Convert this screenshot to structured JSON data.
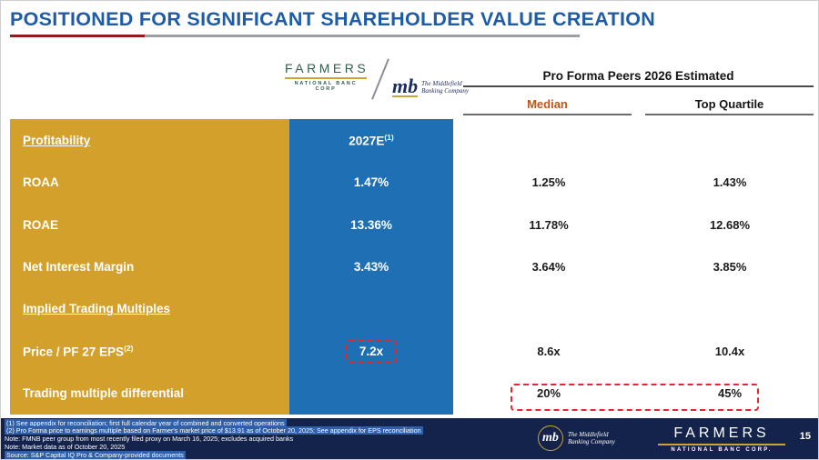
{
  "title": "POSITIONED FOR SIGNIFICANT SHAREHOLDER VALUE CREATION",
  "logos": {
    "farmers_name": "FARMERS",
    "farmers_sub": "NATIONAL BANC CORP",
    "mb_mark": "mb",
    "mb_line1": "The Middlefield",
    "mb_line2": "Banking Company"
  },
  "header": {
    "peers_title": "Pro Forma Peers 2026 Estimated",
    "col_median": "Median",
    "col_top_quartile": "Top Quartile"
  },
  "table": {
    "rows": [
      {
        "label": "Profitability",
        "company": "2027E",
        "company_sup": "(1)",
        "median": "",
        "top": ""
      },
      {
        "label": "ROAA",
        "company": "1.47%",
        "median": "1.25%",
        "top": "1.43%"
      },
      {
        "label": "ROAE",
        "company": "13.36%",
        "median": "11.78%",
        "top": "12.68%"
      },
      {
        "label": "Net Interest Margin",
        "company": "3.43%",
        "median": "3.64%",
        "top": "3.85%"
      },
      {
        "label": "Implied Trading Multiples",
        "company": "",
        "median": "",
        "top": ""
      },
      {
        "label": "Price / PF 27 EPS",
        "label_sup": "(2)",
        "company": "7.2x",
        "median": "8.6x",
        "top": "10.4x"
      },
      {
        "label": "Trading multiple differential",
        "company": "",
        "median": "20%",
        "top": "45%"
      }
    ]
  },
  "footer": {
    "notes": [
      "(1) See appendix for reconciliation; first full calendar year of combined and converted operations",
      "(2) Pro Forma price to earnings multiple based on Farmer's market price of $13.91 as of October 20, 2025; See appendix for EPS reconciliation",
      "Note: FMNB peer group from most recently filed proxy on March 16, 2025; excludes acquired banks",
      "Note: Market data as of October 20, 2025",
      "Source: S&P Capital IQ Pro & Company-provided documents"
    ],
    "mb_mark": "mb",
    "mb_line1": "The Middlefield",
    "mb_line2": "Banking Company",
    "farmers_name": "FARMERS",
    "farmers_sub": "NATIONAL BANC CORP.",
    "page_number": "15"
  },
  "colors": {
    "gold_panel": "#D4A02C",
    "blue_panel": "#1F6FB5",
    "navy_footer": "#14234B",
    "title_blue": "#1F5CA8",
    "median_orange": "#C0571A",
    "dashed_red": "#E8262D",
    "logo_gold": "#C9A437"
  }
}
